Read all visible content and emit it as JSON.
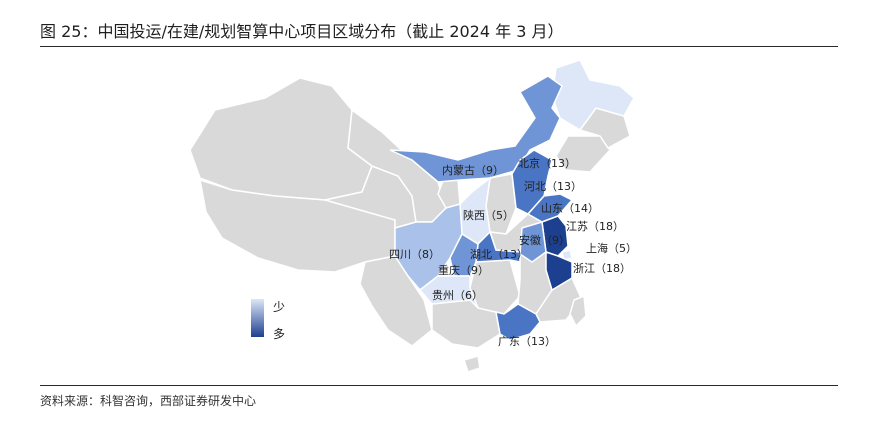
{
  "figure": {
    "title": "图 25：中国投运/在建/规划智算中心项目区域分布（截止 2024 年 3 月）",
    "source": "资料来源：科智咨询，西部证券研发中心"
  },
  "legend": {
    "low": "少",
    "high": "多",
    "color_low": "#dde7f7",
    "color_high": "#1d3f8f"
  },
  "colors": {
    "base_gray": "#d9d9d9",
    "border": "#ffffff",
    "scale": [
      "#dde7f7",
      "#aac1ea",
      "#6f95d6",
      "#4a74c4",
      "#2f57a9",
      "#1d3f8f"
    ]
  },
  "regions": [
    {
      "name": "内蒙古",
      "count": 9,
      "label": "内蒙古（9）"
    },
    {
      "name": "北京",
      "count": 13,
      "label": "北京（13）"
    },
    {
      "name": "河北",
      "count": 13,
      "label": "河北（13）"
    },
    {
      "name": "山东",
      "count": 14,
      "label": "山东（14）"
    },
    {
      "name": "江苏",
      "count": 18,
      "label": "江苏（18）"
    },
    {
      "name": "上海",
      "count": 5,
      "label": "上海（5）"
    },
    {
      "name": "安徽",
      "count": 9,
      "label": "安徽（9）"
    },
    {
      "name": "浙江",
      "count": 18,
      "label": "浙江（18）"
    },
    {
      "name": "陕西",
      "count": 5,
      "label": "陕西（5）"
    },
    {
      "name": "湖北",
      "count": 13,
      "label": "湖北（13）"
    },
    {
      "name": "四川",
      "count": 8,
      "label": "四川（8）"
    },
    {
      "name": "重庆",
      "count": 9,
      "label": "重庆（9）"
    },
    {
      "name": "贵州",
      "count": 6,
      "label": "贵州（6）"
    },
    {
      "name": "广东",
      "count": 13,
      "label": "广东（13）"
    }
  ]
}
